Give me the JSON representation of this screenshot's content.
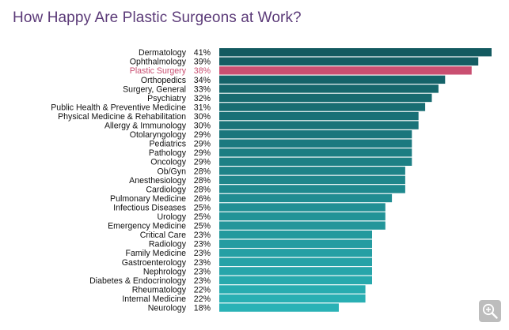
{
  "title": "How Happy Are Plastic Surgeons at Work?",
  "colors": {
    "highlight": "#c94f71",
    "top": "#135a60",
    "bottom": "#2ab2b6",
    "title": "#5b3a78",
    "label": "#111111",
    "zoom_bg": "#bdbdbd"
  },
  "zoom_icon": "zoom-in-icon",
  "chart_data": {
    "type": "bar",
    "orientation": "horizontal",
    "title": "How Happy Are Plastic Surgeons at Work?",
    "value_suffix": "%",
    "highlight": "Plastic Surgery",
    "categories": [
      "Dermatology",
      "Ophthalmology",
      "Plastic Surgery",
      "Orthopedics",
      "Surgery, General",
      "Psychiatry",
      "Public Health & Preventive Medicine",
      "Physical Medicine & Rehabilitation",
      "Allergy & Immunology",
      "Otolaryngology",
      "Pediatrics",
      "Pathology",
      "Oncology",
      "Ob/Gyn",
      "Anesthesiology",
      "Cardiology",
      "Pulmonary Medicine",
      "Infectious Diseases",
      "Urology",
      "Emergency Medicine",
      "Critical Care",
      "Radiology",
      "Family Medicine",
      "Gastroenterology",
      "Nephrology",
      "Diabetes & Endocrinology",
      "Rheumatology",
      "Internal Medicine",
      "Neurology"
    ],
    "values": [
      41,
      39,
      38,
      34,
      33,
      32,
      31,
      30,
      30,
      29,
      29,
      29,
      29,
      28,
      28,
      28,
      26,
      25,
      25,
      25,
      23,
      23,
      23,
      23,
      23,
      23,
      22,
      22,
      18
    ],
    "value_labels": [
      "41%",
      "39%",
      "38%",
      "34%",
      "33%",
      "32%",
      "31%",
      "30%",
      "30%",
      "29%",
      "29%",
      "29%",
      "29%",
      "28%",
      "28%",
      "28%",
      "26%",
      "25%",
      "25%",
      "25%",
      "23%",
      "23%",
      "23%",
      "23%",
      "23%",
      "23%",
      "22%",
      "22%",
      "18%"
    ],
    "xlim": [
      0,
      41
    ],
    "grid": false,
    "legend": "none"
  }
}
